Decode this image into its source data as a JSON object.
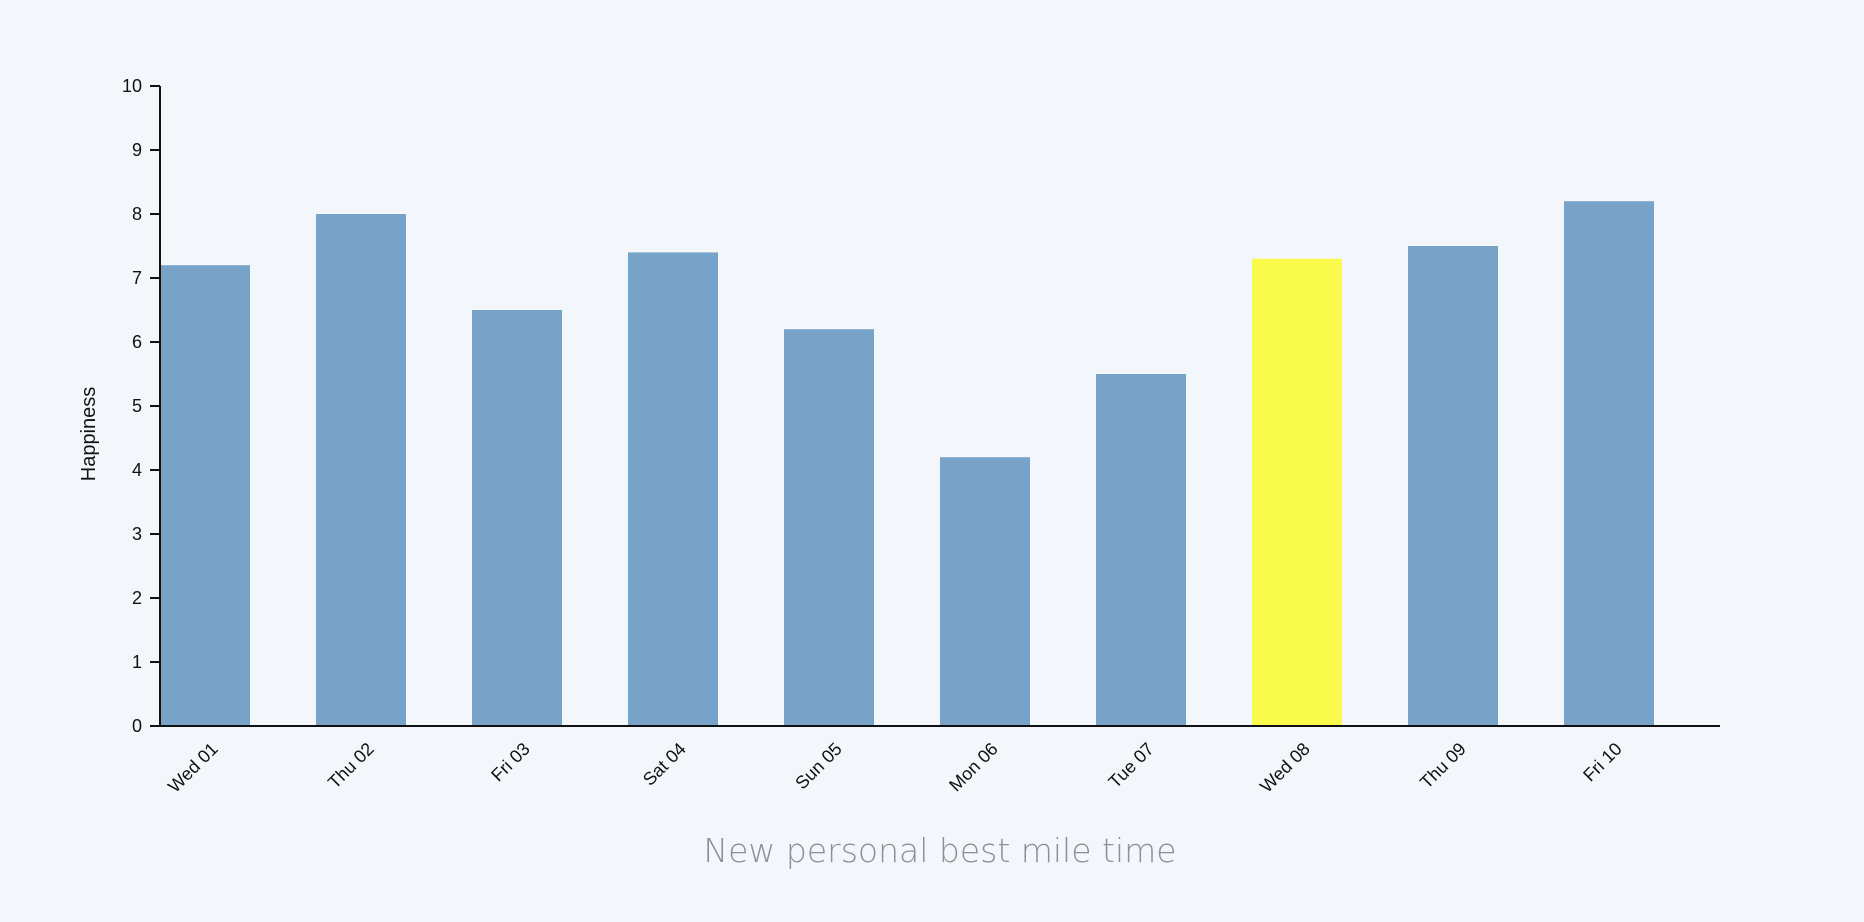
{
  "chart_data": {
    "type": "bar",
    "categories": [
      "Wed 01",
      "Thu 02",
      "Fri 03",
      "Sat 04",
      "Sun 05",
      "Mon 06",
      "Tue 07",
      "Wed 08",
      "Thu 09",
      "Fri 10"
    ],
    "values": [
      7.2,
      8.0,
      6.5,
      7.4,
      6.2,
      4.2,
      5.5,
      7.3,
      7.5,
      8.2
    ],
    "highlight_index": 7,
    "highlight_label": "New personal best mile time",
    "ylabel": "Happiness",
    "xlabel": "",
    "ylim": [
      0,
      10
    ],
    "yticks": [
      0,
      1,
      2,
      3,
      4,
      5,
      6,
      7,
      8,
      9,
      10
    ],
    "grid": false,
    "colors": {
      "bar": "#78a3c9",
      "highlight": "#f9fa4a",
      "axis": "#111111",
      "caption": "#8a9096",
      "background": "#f3f6fa"
    }
  }
}
